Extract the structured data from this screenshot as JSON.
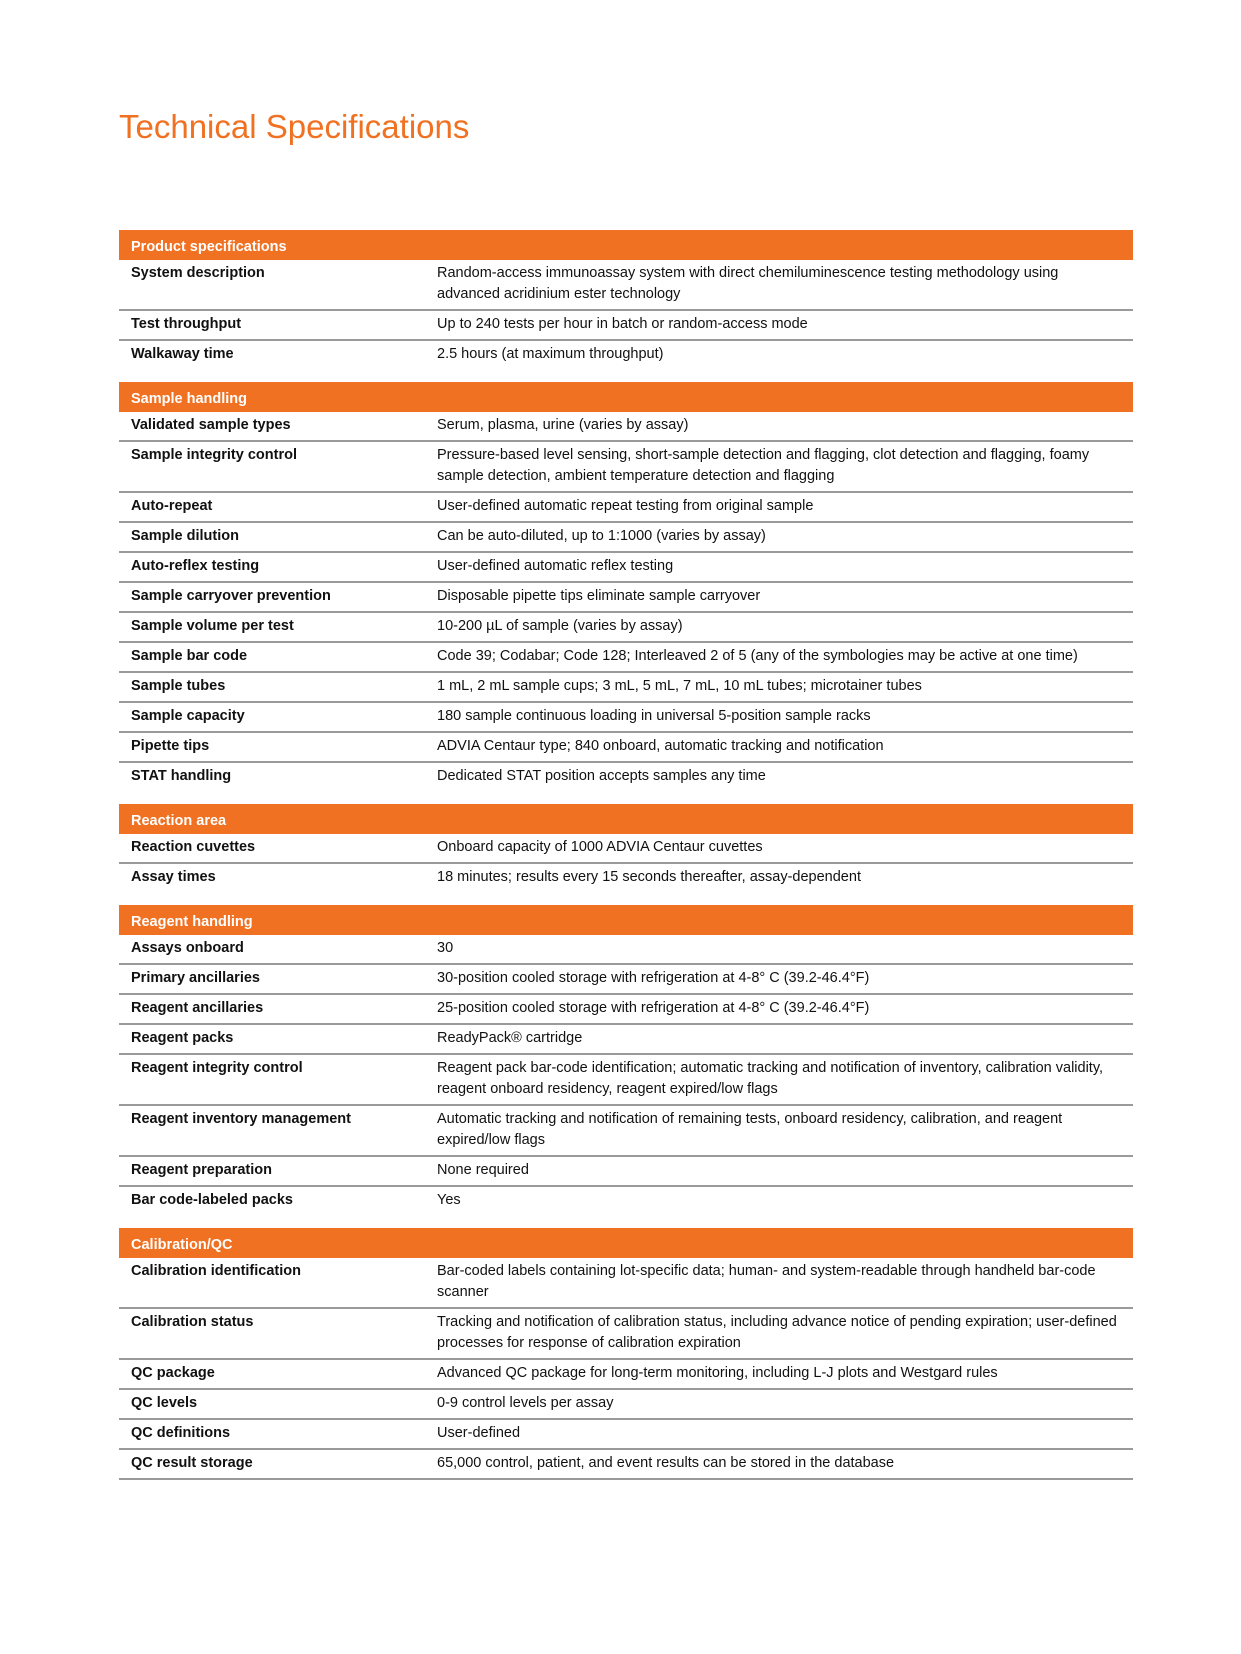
{
  "title": "Technical Specifications",
  "accent_color": "#f07122",
  "sections": [
    {
      "heading": "Product specifications",
      "rows": [
        {
          "label": "System description",
          "value": "Random-access immunoassay system with direct chemiluminescence testing methodology using advanced acridinium ester technology"
        },
        {
          "label": "Test throughput",
          "value": "Up to 240 tests per hour in batch or random-access mode"
        },
        {
          "label": "Walkaway time",
          "value": "2.5 hours (at maximum throughput)"
        }
      ]
    },
    {
      "heading": "Sample handling",
      "rows": [
        {
          "label": "Validated sample types",
          "value": "Serum, plasma, urine (varies by assay)"
        },
        {
          "label": "Sample integrity control",
          "value": "Pressure-based level sensing, short-sample detection and flagging, clot detection and flagging, foamy sample detection, ambient temperature detection and flagging"
        },
        {
          "label": "Auto-repeat",
          "value": "User-defined automatic repeat testing from original sample"
        },
        {
          "label": "Sample dilution",
          "value": "Can be auto-diluted, up to 1:1000 (varies by assay)"
        },
        {
          "label": "Auto-reflex testing",
          "value": "User-defined automatic reflex testing"
        },
        {
          "label": "Sample carryover prevention",
          "value": "Disposable pipette tips eliminate sample carryover"
        },
        {
          "label": "Sample volume per test",
          "value": "10-200 µL of sample (varies by assay)"
        },
        {
          "label": "Sample bar code",
          "value": "Code 39; Codabar; Code 128; Interleaved 2 of 5 (any of the symbologies may be active at one time)"
        },
        {
          "label": "Sample tubes",
          "value": "1 mL, 2 mL sample cups; 3 mL, 5 mL, 7 mL, 10 mL tubes; microtainer tubes"
        },
        {
          "label": "Sample capacity",
          "value": "180 sample continuous loading in universal 5-position sample racks"
        },
        {
          "label": "Pipette tips",
          "value": "ADVIA Centaur type; 840 onboard, automatic tracking and notification"
        },
        {
          "label": "STAT handling",
          "value": "Dedicated STAT position accepts samples any time"
        }
      ]
    },
    {
      "heading": "Reaction area",
      "rows": [
        {
          "label": "Reaction cuvettes",
          "value": "Onboard capacity of 1000 ADVIA Centaur cuvettes"
        },
        {
          "label": "Assay times",
          "value": "18 minutes; results every 15 seconds thereafter, assay-dependent"
        }
      ]
    },
    {
      "heading": "Reagent handling",
      "rows": [
        {
          "label": "Assays onboard",
          "value": "30"
        },
        {
          "label": "Primary ancillaries",
          "value": "30-position cooled storage with refrigeration at 4-8° C (39.2-46.4°F)"
        },
        {
          "label": "Reagent ancillaries",
          "value": "25-position cooled storage with refrigeration at 4-8° C (39.2-46.4°F)"
        },
        {
          "label": "Reagent packs",
          "value": "ReadyPack® cartridge"
        },
        {
          "label": "Reagent integrity control",
          "value": "Reagent pack bar-code identification; automatic tracking and notification of inventory, calibration validity, reagent onboard residency, reagent expired/low flags"
        },
        {
          "label": "Reagent inventory management",
          "value": "Automatic tracking and notification of remaining tests, onboard residency, calibration, and reagent expired/low flags"
        },
        {
          "label": "Reagent preparation",
          "value": "None required"
        },
        {
          "label": "Bar code-labeled packs",
          "value": "Yes"
        }
      ]
    },
    {
      "heading": "Calibration/QC",
      "rows": [
        {
          "label": "Calibration identification",
          "value": "Bar-coded labels containing lot-specific data; human- and system-readable through handheld bar-code scanner"
        },
        {
          "label": "Calibration status",
          "value": "Tracking and notification of calibration status, including advance notice of pending expiration; user-defined processes for response of calibration expiration"
        },
        {
          "label": "QC package",
          "value": "Advanced QC package for long-term monitoring, including L-J plots and Westgard rules"
        },
        {
          "label": "QC levels",
          "value": "0-9 control levels per assay"
        },
        {
          "label": "QC definitions",
          "value": "User-defined"
        },
        {
          "label": "QC result storage",
          "value": "65,000 control, patient, and event results can be stored in the database"
        }
      ]
    }
  ]
}
